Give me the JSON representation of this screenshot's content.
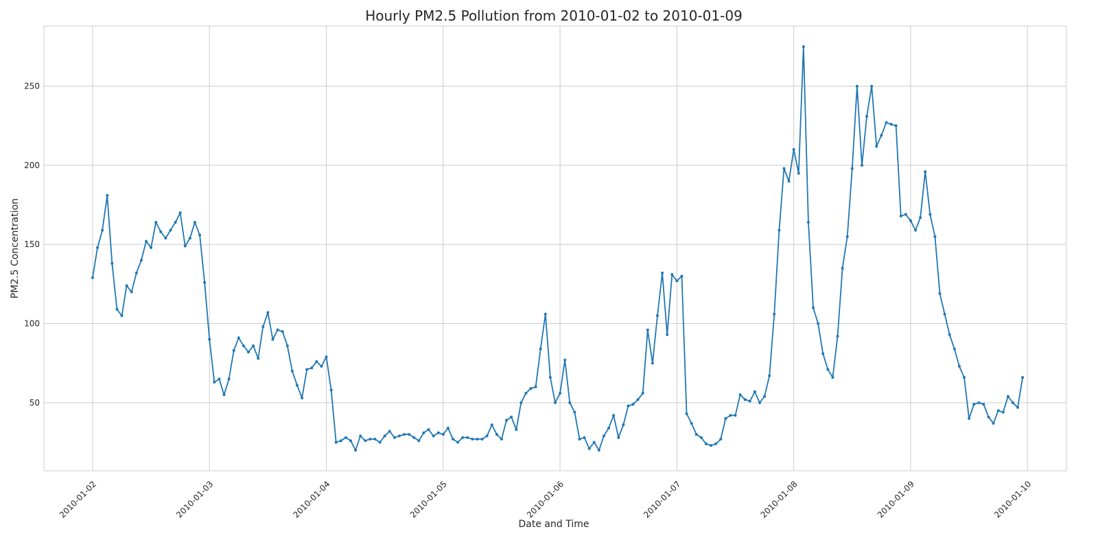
{
  "chart_data": {
    "type": "line",
    "title": "Hourly PM2.5 Pollution from 2010-01-02 to 2010-01-09",
    "xlabel": "Date and Time",
    "ylabel": "PM2.5 Concentration",
    "start": "2010-01-02 00:00",
    "interval": "1 hour",
    "xlim": [
      "2010-01-01 14:00",
      "2010-01-10 08:00"
    ],
    "ylim": [
      7,
      288
    ],
    "x_ticks": [
      "2010-01-02",
      "2010-01-03",
      "2010-01-04",
      "2010-01-05",
      "2010-01-06",
      "2010-01-07",
      "2010-01-08",
      "2010-01-09",
      "2010-01-10"
    ],
    "y_ticks": [
      50,
      100,
      150,
      200,
      250
    ],
    "grid": true,
    "color": "#1f77b4",
    "markers": true,
    "values": [
      129,
      148,
      159,
      181,
      138,
      109,
      105,
      124,
      120,
      132,
      140,
      152,
      148,
      164,
      158,
      154,
      159,
      164,
      170,
      149,
      154,
      164,
      156,
      126,
      90,
      63,
      65,
      55,
      65,
      83,
      91,
      86,
      82,
      86,
      78,
      98,
      107,
      90,
      96,
      95,
      86,
      70,
      61,
      53,
      71,
      72,
      76,
      73,
      79,
      58,
      25,
      26,
      28,
      26,
      20,
      29,
      26,
      27,
      27,
      25,
      29,
      32,
      28,
      29,
      30,
      30,
      28,
      26,
      31,
      33,
      29,
      31,
      30,
      34,
      27,
      25,
      28,
      28,
      27,
      27,
      27,
      29,
      36,
      30,
      27,
      39,
      41,
      33,
      50,
      56,
      59,
      60,
      84,
      106,
      66,
      50,
      56,
      77,
      50,
      44,
      27,
      28,
      21,
      25,
      20,
      29,
      34,
      42,
      28,
      36,
      48,
      49,
      52,
      56,
      96,
      75,
      105,
      132,
      93,
      131,
      127,
      130,
      43,
      37,
      30,
      28,
      24,
      23,
      24,
      27,
      40,
      42,
      42,
      55,
      52,
      51,
      57,
      50,
      54,
      67,
      106,
      159,
      198,
      190,
      210,
      195,
      275,
      164,
      110,
      100,
      81,
      71,
      66,
      92,
      135,
      155,
      198,
      250,
      200,
      231,
      250,
      212,
      219,
      227,
      226,
      225,
      168,
      169,
      165,
      159,
      167,
      196,
      169,
      155,
      119,
      106,
      93,
      84,
      73,
      66,
      40,
      49,
      50,
      49,
      41,
      37,
      45,
      44,
      54,
      50,
      47,
      66
    ]
  }
}
